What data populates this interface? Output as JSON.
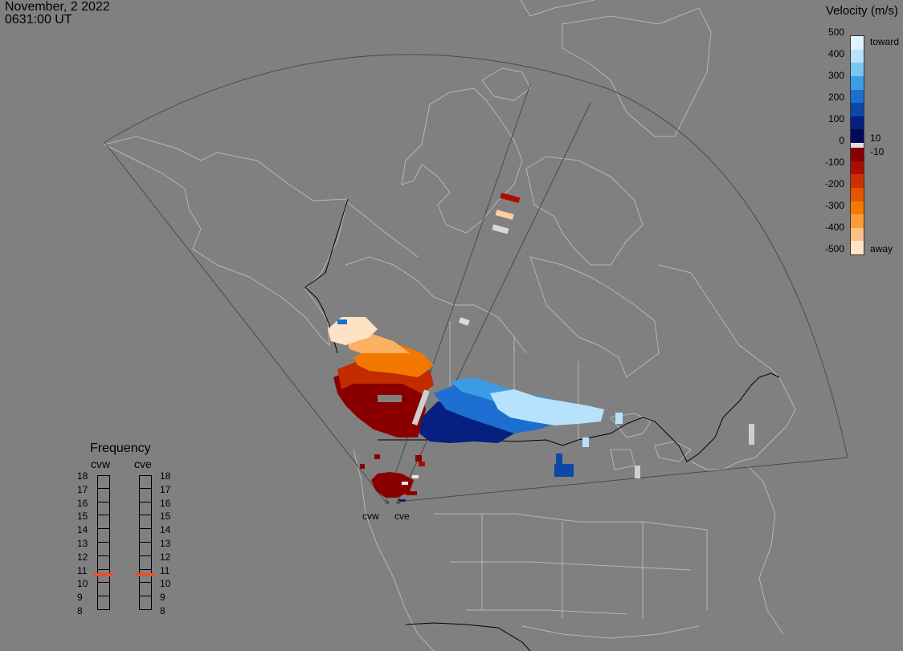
{
  "header": {
    "date": "November, 2 2022",
    "time": "0631:00 UT"
  },
  "velocity_scale": {
    "title": "Velocity (m/s)",
    "ticks": [
      "500",
      "400",
      "300",
      "200",
      "100",
      "0",
      "-100",
      "-200",
      "-300",
      "-400",
      "-500"
    ],
    "positive_label": "toward",
    "negative_label": "away",
    "pos_threshold": "10",
    "neg_threshold": "-10",
    "colors_toward": [
      "#dff2ff",
      "#b7e2fb",
      "#79c6f3",
      "#3d9ce6",
      "#1c6fd0",
      "#0d47a8",
      "#061f80",
      "#000a56"
    ],
    "colors_away": [
      "#860000",
      "#a90f00",
      "#cc3200",
      "#e25600",
      "#f47a00",
      "#fb9c38",
      "#fdc088",
      "#fee3c6"
    ],
    "gap_color": "#e0e0e0"
  },
  "frequency": {
    "title": "Frequency",
    "radars": [
      {
        "name": "cvw",
        "selected": "11"
      },
      {
        "name": "cve",
        "selected": "11"
      }
    ],
    "levels": [
      "18",
      "17",
      "16",
      "15",
      "14",
      "13",
      "12",
      "11",
      "10",
      "9",
      "8"
    ],
    "marker_color": "#e8502a"
  },
  "map_style": {
    "ocean": "#808080",
    "land_line": "#b6b6b6",
    "border_line": "#000000",
    "fov_line": "#4a4a4a"
  },
  "sites": [
    {
      "label": "cvw"
    },
    {
      "label": "cve"
    }
  ]
}
